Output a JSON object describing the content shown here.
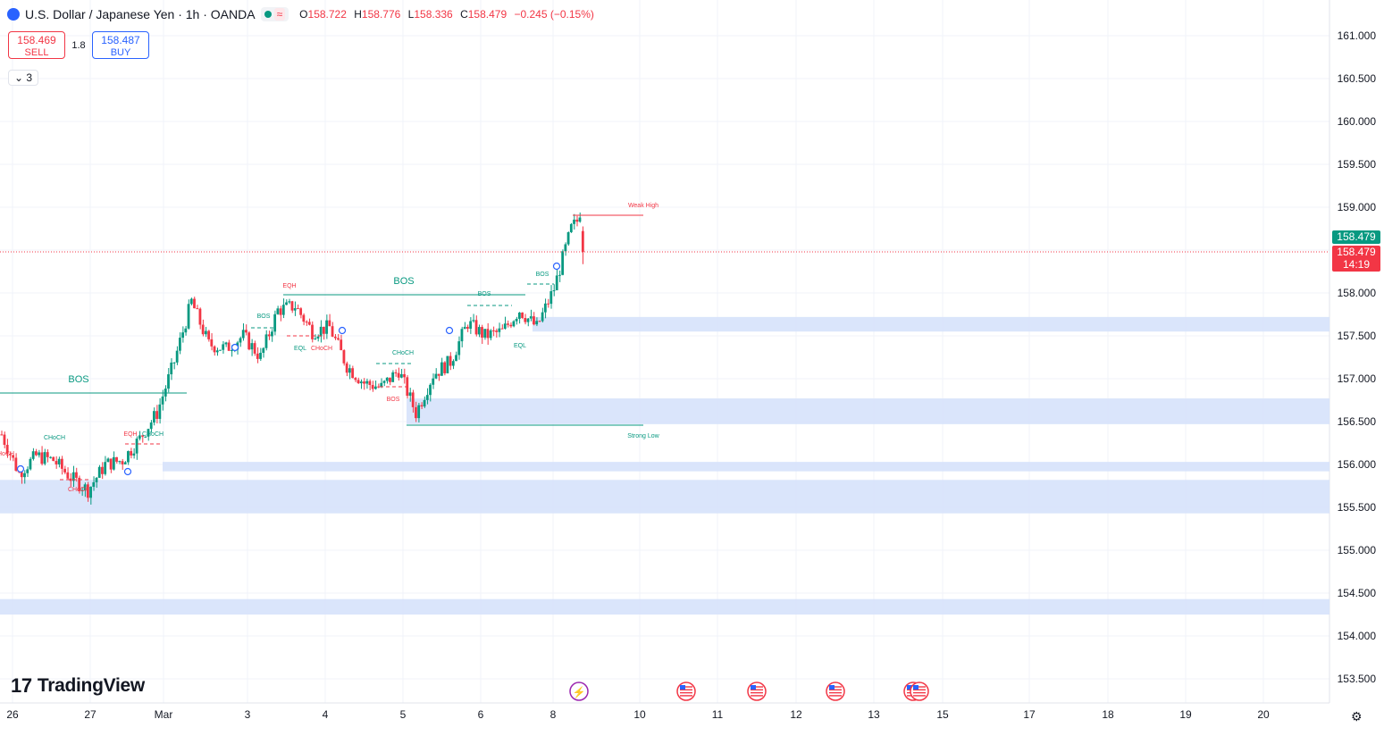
{
  "header": {
    "symbol": "U.S. Dollar / Japanese Yen · 1h · OANDA",
    "live_badge": "≈",
    "open_label": "O",
    "open": "158.722",
    "high_label": "H",
    "high": "158.776",
    "low_label": "L",
    "low": "158.336",
    "close_label": "C",
    "close": "158.479",
    "change": "−0.245 (−0.15%)"
  },
  "trade": {
    "sell_price": "158.469",
    "sell_label": "SELL",
    "spread": "1.8",
    "buy_price": "158.487",
    "buy_label": "BUY"
  },
  "indicators_collapse": "3",
  "brand": "TradingView",
  "price_labels": {
    "last": "158.479",
    "bid": "158.479",
    "countdown": "14:19"
  },
  "colors": {
    "up": "#089981",
    "down": "#f23645",
    "zone": "#d6e2fb",
    "grid": "#f0f3fa"
  },
  "chart_data": {
    "type": "candlestick",
    "ylim": [
      153.35,
      161.25
    ],
    "y_ticks": [
      "161.000",
      "160.500",
      "160.000",
      "159.500",
      "159.000",
      "158.500",
      "158.000",
      "157.500",
      "157.000",
      "156.500",
      "156.000",
      "155.500",
      "155.000",
      "154.500",
      "154.000",
      "153.500"
    ],
    "x_ticks": [
      "26",
      "27",
      "Mar",
      "3",
      "4",
      "5",
      "6",
      "8",
      "10",
      "11",
      "12",
      "13",
      "15",
      "17",
      "18",
      "19",
      "20"
    ],
    "approx_close_path": [
      [
        0,
        156.35
      ],
      [
        6,
        155.9
      ],
      [
        12,
        156.1
      ],
      [
        18,
        156.05
      ],
      [
        24,
        155.85
      ],
      [
        30,
        155.7
      ],
      [
        36,
        156.0
      ],
      [
        42,
        156.05
      ],
      [
        48,
        156.3
      ],
      [
        54,
        156.6
      ],
      [
        60,
        157.2
      ],
      [
        66,
        157.9
      ],
      [
        72,
        157.4
      ],
      [
        78,
        157.35
      ],
      [
        84,
        157.5
      ],
      [
        90,
        157.25
      ],
      [
        96,
        157.8
      ],
      [
        102,
        157.85
      ],
      [
        108,
        157.55
      ],
      [
        114,
        157.6
      ],
      [
        120,
        157.15
      ],
      [
        126,
        156.95
      ],
      [
        132,
        156.9
      ],
      [
        138,
        157.1
      ],
      [
        144,
        156.6
      ],
      [
        150,
        157.05
      ],
      [
        156,
        157.2
      ],
      [
        162,
        157.65
      ],
      [
        168,
        157.5
      ],
      [
        174,
        157.55
      ],
      [
        180,
        157.8
      ],
      [
        186,
        157.6
      ],
      [
        192,
        158.05
      ],
      [
        198,
        158.75
      ],
      [
        201,
        158.88
      ],
      [
        202,
        158.479
      ]
    ],
    "annotations": [
      "BOS",
      "BOS",
      "BOS",
      "BOS",
      "BOS",
      "BOS",
      "EQH",
      "EQH",
      "EQL",
      "EQL",
      "CHoCH",
      "CHoCH",
      "CHoCH",
      "CHoCH",
      "CHoCH",
      "CHoCH",
      "Weak High",
      "Strong Low"
    ],
    "zones": [
      [
        157.55,
        157.72
      ],
      [
        156.47,
        156.77
      ],
      [
        155.92,
        156.03
      ],
      [
        155.43,
        155.82
      ],
      [
        154.25,
        154.43
      ]
    ],
    "weak_high": 158.89,
    "strong_low": 156.45,
    "last_price": 158.479
  }
}
